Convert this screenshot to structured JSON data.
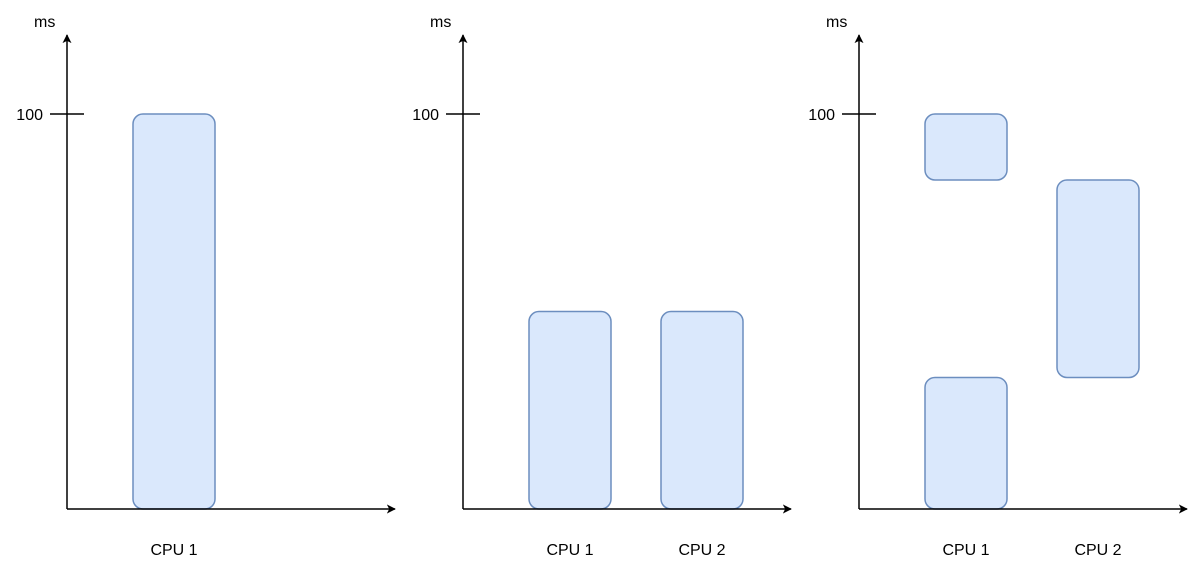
{
  "chart_data": [
    {
      "type": "bar",
      "ylabel": "ms",
      "yticks": [
        100
      ],
      "ylim": [
        0,
        130
      ],
      "categories": [
        "CPU 1"
      ],
      "blocks": [
        {
          "category": "CPU 1",
          "start": 0,
          "end": 100
        }
      ]
    },
    {
      "type": "bar",
      "ylabel": "ms",
      "yticks": [
        100
      ],
      "ylim": [
        0,
        130
      ],
      "categories": [
        "CPU 1",
        "CPU 2"
      ],
      "blocks": [
        {
          "category": "CPU 1",
          "start": 0,
          "end": 50
        },
        {
          "category": "CPU 2",
          "start": 0,
          "end": 50
        }
      ]
    },
    {
      "type": "bar",
      "ylabel": "ms",
      "yticks": [
        100
      ],
      "ylim": [
        0,
        130
      ],
      "categories": [
        "CPU 1",
        "CPU 2"
      ],
      "blocks": [
        {
          "category": "CPU 1",
          "start": 0,
          "end": 33.3
        },
        {
          "category": "CPU 1",
          "start": 83.3,
          "end": 100
        },
        {
          "category": "CPU 2",
          "start": 33.3,
          "end": 83.3
        }
      ]
    }
  ],
  "colors": {
    "block_fill": "#dae8fc",
    "block_stroke": "#6c8ebf",
    "axis": "#000000"
  }
}
